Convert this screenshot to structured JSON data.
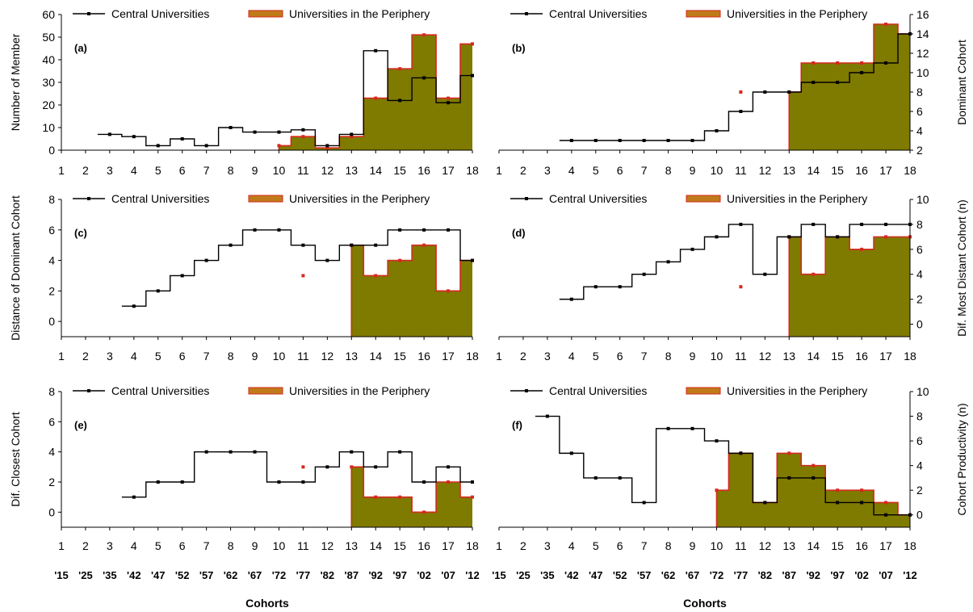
{
  "legend": {
    "central": "Central Universities",
    "periphery": "Universities in the Periphery"
  },
  "colors": {
    "central_line": "#000000",
    "periphery_line": "#d42a1f",
    "periphery_fill": "#7f7a00"
  },
  "x_ticks": [
    "1",
    "2",
    "3",
    "4",
    "5",
    "6",
    "7",
    "8",
    "9",
    "10",
    "11",
    "12",
    "13",
    "14",
    "15",
    "16",
    "17",
    "18"
  ],
  "cohort_labels": [
    "'15",
    "'25",
    "'35",
    "'42",
    "'47",
    "'52",
    "'57",
    "'62",
    "'67",
    "'72",
    "'77",
    "'82",
    "'87",
    "'92",
    "'97",
    "'02",
    "'07",
    "'12"
  ],
  "x_title": "Cohorts",
  "chart_data": [
    {
      "type": "line",
      "step": true,
      "label": "(a)",
      "ylabel": "Number of Member",
      "ylabel_side": "left",
      "ylim": [
        0,
        60
      ],
      "yticks": [
        "0",
        "10",
        "20",
        "30",
        "40",
        "50",
        "60"
      ],
      "x": [
        1,
        2,
        3,
        4,
        5,
        6,
        7,
        8,
        9,
        10,
        11,
        12,
        13,
        14,
        15,
        16,
        17,
        18
      ],
      "series": [
        {
          "name": "Central Universities",
          "x": [
            3,
            4,
            5,
            6,
            7,
            8,
            9,
            10,
            11,
            12,
            13,
            14,
            15,
            16,
            17,
            18
          ],
          "values": [
            7,
            6,
            2,
            5,
            2,
            10,
            8,
            8,
            9,
            2,
            7,
            44,
            22,
            32,
            21,
            33
          ]
        },
        {
          "name": "Universities in the Periphery",
          "x": [
            10,
            11,
            12,
            13,
            14,
            15,
            16,
            17,
            18
          ],
          "values": [
            2,
            6,
            1,
            6,
            23,
            36,
            51,
            23,
            47
          ],
          "fill_from": 10
        },
        {
          "name": "",
          "x": [],
          "values": []
        }
      ]
    },
    {
      "type": "line",
      "step": true,
      "label": "(b)",
      "ylabel": "Dominant Cohort",
      "ylabel_side": "right",
      "ylim": [
        2,
        16
      ],
      "yticks": [
        "2",
        "4",
        "6",
        "8",
        "10",
        "12",
        "14",
        "16"
      ],
      "x": [
        1,
        2,
        3,
        4,
        5,
        6,
        7,
        8,
        9,
        10,
        11,
        12,
        13,
        14,
        15,
        16,
        17,
        18
      ],
      "series": [
        {
          "name": "Central Universities",
          "x": [
            4,
            5,
            6,
            7,
            8,
            9,
            10,
            11,
            12,
            13,
            14,
            15,
            16,
            17,
            18
          ],
          "values": [
            3,
            3,
            3,
            3,
            3,
            3,
            4,
            6,
            8,
            8,
            9,
            9,
            10,
            11,
            14
          ]
        },
        {
          "name": "Universities in the Periphery",
          "x": [
            13,
            14,
            15,
            16,
            17,
            18
          ],
          "values": [
            8,
            11,
            11,
            11,
            15,
            14
          ],
          "fill_from": 13
        },
        {
          "name": "",
          "x": [
            11
          ],
          "values": [
            8
          ]
        }
      ]
    },
    {
      "type": "line",
      "step": true,
      "label": "(c)",
      "ylabel": "Distance of Dominant Cohort",
      "ylabel_side": "left",
      "ylim": [
        -1,
        8
      ],
      "yticks": [
        "0",
        "2",
        "4",
        "6",
        "8"
      ],
      "x": [
        1,
        2,
        3,
        4,
        5,
        6,
        7,
        8,
        9,
        10,
        11,
        12,
        13,
        14,
        15,
        16,
        17,
        18
      ],
      "series": [
        {
          "name": "Central Universities",
          "x": [
            4,
            5,
            6,
            7,
            8,
            9,
            10,
            11,
            12,
            13,
            14,
            15,
            16,
            17,
            18
          ],
          "values": [
            1,
            2,
            3,
            4,
            5,
            6,
            6,
            5,
            4,
            5,
            5,
            6,
            6,
            6,
            4
          ]
        },
        {
          "name": "Universities in the Periphery",
          "x": [
            13,
            14,
            15,
            16,
            17,
            18
          ],
          "values": [
            5,
            3,
            4,
            5,
            2,
            4
          ],
          "fill_from": 13
        },
        {
          "name": "",
          "x": [
            11
          ],
          "values": [
            3
          ]
        }
      ]
    },
    {
      "type": "line",
      "step": true,
      "label": "(d)",
      "ylabel": "Dif. Most Distant Cohort (n)",
      "ylabel_side": "right",
      "ylim": [
        -1,
        10
      ],
      "yticks": [
        "0",
        "2",
        "4",
        "6",
        "8",
        "10"
      ],
      "x": [
        1,
        2,
        3,
        4,
        5,
        6,
        7,
        8,
        9,
        10,
        11,
        12,
        13,
        14,
        15,
        16,
        17,
        18
      ],
      "series": [
        {
          "name": "Central Universities",
          "x": [
            4,
            5,
            6,
            7,
            8,
            9,
            10,
            11,
            12,
            13,
            14,
            15,
            16,
            17,
            18
          ],
          "values": [
            2,
            3,
            3,
            4,
            5,
            6,
            7,
            8,
            4,
            7,
            8,
            7,
            8,
            8,
            8
          ]
        },
        {
          "name": "Universities in the Periphery",
          "x": [
            13,
            14,
            15,
            16,
            17,
            18
          ],
          "values": [
            7,
            4,
            7,
            6,
            7,
            7
          ],
          "fill_from": 13
        },
        {
          "name": "",
          "x": [
            11
          ],
          "values": [
            3
          ]
        }
      ]
    },
    {
      "type": "line",
      "step": true,
      "label": "(e)",
      "ylabel": "Dif. Closest Cohort",
      "ylabel_side": "left",
      "ylim": [
        -1,
        8
      ],
      "yticks": [
        "0",
        "2",
        "4",
        "6",
        "8"
      ],
      "x": [
        1,
        2,
        3,
        4,
        5,
        6,
        7,
        8,
        9,
        10,
        11,
        12,
        13,
        14,
        15,
        16,
        17,
        18
      ],
      "series": [
        {
          "name": "Central Universities",
          "x": [
            4,
            5,
            6,
            7,
            8,
            9,
            10,
            11,
            12,
            13,
            14,
            15,
            16,
            17,
            18
          ],
          "values": [
            1,
            2,
            2,
            4,
            4,
            4,
            2,
            2,
            3,
            4,
            3,
            4,
            2,
            3,
            2
          ]
        },
        {
          "name": "Universities in the Periphery",
          "x": [
            13,
            14,
            15,
            16,
            17,
            18
          ],
          "values": [
            3,
            1,
            1,
            0,
            2,
            1
          ],
          "fill_from": 13
        },
        {
          "name": "",
          "x": [
            11
          ],
          "values": [
            3
          ]
        }
      ]
    },
    {
      "type": "line",
      "step": true,
      "label": "(f)",
      "ylabel": "Cohort Productivity (n)",
      "ylabel_side": "right",
      "ylim": [
        -1,
        10
      ],
      "yticks": [
        "0",
        "2",
        "4",
        "6",
        "8",
        "10"
      ],
      "x": [
        1,
        2,
        3,
        4,
        5,
        6,
        7,
        8,
        9,
        10,
        11,
        12,
        13,
        14,
        15,
        16,
        17,
        18
      ],
      "series": [
        {
          "name": "Central Universities",
          "x": [
            3,
            4,
            5,
            6,
            7,
            8,
            9,
            10,
            11,
            12,
            13,
            14,
            15,
            16,
            17,
            18
          ],
          "values": [
            8,
            5,
            3,
            3,
            1,
            7,
            7,
            6,
            5,
            1,
            3,
            3,
            1,
            1,
            0,
            0
          ]
        },
        {
          "name": "Universities in the Periphery",
          "x": [
            10,
            11,
            12,
            13,
            14,
            15,
            16,
            17,
            18
          ],
          "values": [
            2,
            5,
            1,
            5,
            4,
            2,
            2,
            1,
            0
          ],
          "fill_from": 10
        },
        {
          "name": "",
          "x": [],
          "values": []
        }
      ]
    }
  ]
}
